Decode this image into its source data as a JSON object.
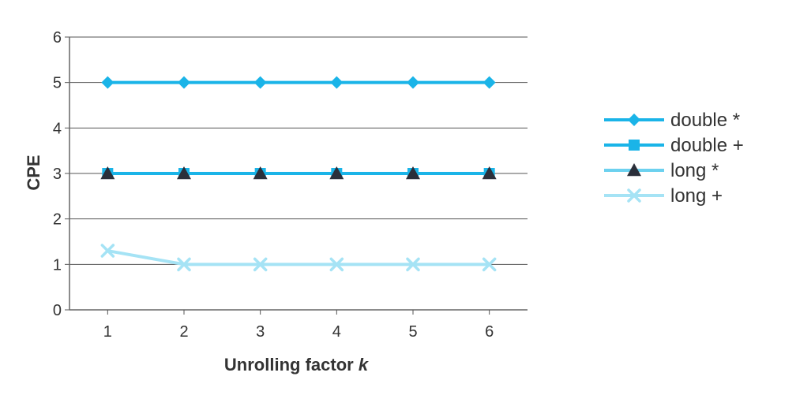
{
  "chart_data": {
    "type": "line",
    "title": "",
    "xlabel": "Unrolling factor",
    "xlabel_var": "k",
    "ylabel": "CPE",
    "x": [
      1,
      2,
      3,
      4,
      5,
      6
    ],
    "xlim": [
      0.5,
      6.5
    ],
    "ylim": [
      0,
      6
    ],
    "yticks": [
      0,
      1,
      2,
      3,
      4,
      5,
      6
    ],
    "grid": "horizontal",
    "legend_position": "right",
    "series": [
      {
        "name": "double *",
        "values": [
          5,
          5,
          5,
          5,
          5,
          5
        ],
        "marker": "diamond",
        "color": "#1ab4e8"
      },
      {
        "name": "double +",
        "values": [
          3,
          3,
          3,
          3,
          3,
          3
        ],
        "marker": "square",
        "color": "#1ab4e8"
      },
      {
        "name": "long *",
        "values": [
          3,
          3,
          3,
          3,
          3,
          3
        ],
        "marker": "triangle",
        "color": "#6cd1ef",
        "marker_color": "#2b2f3a"
      },
      {
        "name": "long +",
        "values": [
          1.3,
          1,
          1,
          1,
          1,
          1
        ],
        "marker": "x",
        "color": "#a5e3f5"
      }
    ]
  }
}
